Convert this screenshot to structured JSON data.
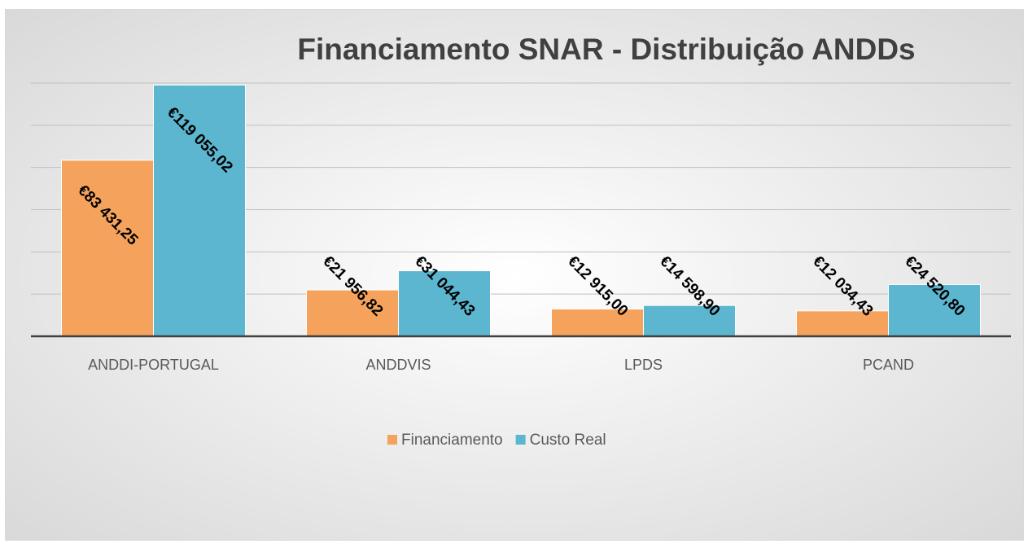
{
  "chart_data": {
    "type": "bar",
    "title": "Financiamento SNAR - Distribuição ANDDs",
    "categories": [
      "ANDDI-PORTUGAL",
      "ANDDVIS",
      "LPDS",
      "PCAND"
    ],
    "series": [
      {
        "name": "Financiamento",
        "color": "#f5a35c",
        "values": [
          83431.25,
          21956.82,
          12915.0,
          12034.43
        ],
        "value_labels": [
          "€83 431,25",
          "€21 956,82",
          "€12 915,00",
          "€12 034,43"
        ]
      },
      {
        "name": "Custo Real",
        "color": "#5cb6cf",
        "values": [
          119055.02,
          31044.43,
          14598.9,
          24520.8
        ],
        "value_labels": [
          "€119 055,02",
          "€31 044,43",
          "€14 598,90",
          "€24 520,80"
        ]
      }
    ],
    "ylim": [
      0,
      120000
    ],
    "yticks": [
      0,
      20000,
      40000,
      60000,
      80000,
      100000,
      120000
    ],
    "grid": true,
    "legend": "bottom"
  }
}
